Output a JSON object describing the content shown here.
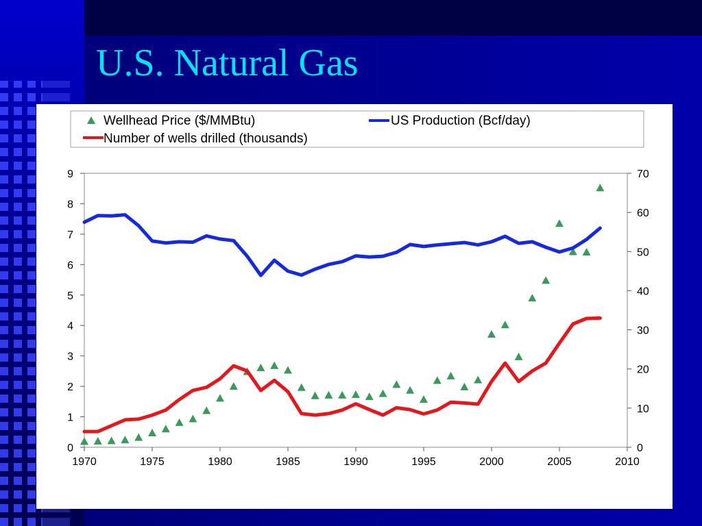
{
  "slide": {
    "title": "U.S. Natural Gas"
  },
  "colors": {
    "title": "#00e5ff",
    "price_marker": "#3a9a5b",
    "production_line": "#1428e8",
    "wells_line": "#e8161b"
  },
  "chart_data": {
    "type": "line",
    "title": "",
    "xlabel": "",
    "ylabel": "",
    "y2label": "",
    "xlim": [
      1970,
      2010
    ],
    "ylim": [
      0,
      9
    ],
    "y2lim": [
      0,
      70
    ],
    "x_ticks": [
      "1970",
      "1975",
      "1980",
      "1985",
      "1990",
      "1995",
      "2000",
      "2005",
      "2010"
    ],
    "y_ticks": [
      "0",
      "1",
      "2",
      "3",
      "4",
      "5",
      "6",
      "7",
      "8",
      "9"
    ],
    "y2_ticks": [
      "0",
      "10",
      "20",
      "30",
      "40",
      "50",
      "60",
      "70"
    ],
    "grid": false,
    "legend_position": "top",
    "series": [
      {
        "name": "Wellhead Price ($/MMBtu)",
        "type": "scatter",
        "axis": "left",
        "marker": "triangle",
        "x": [
          1970,
          1971,
          1972,
          1973,
          1974,
          1975,
          1976,
          1977,
          1978,
          1979,
          1980,
          1981,
          1982,
          1983,
          1984,
          1985,
          1986,
          1987,
          1988,
          1989,
          1990,
          1991,
          1992,
          1993,
          1994,
          1995,
          1996,
          1997,
          1998,
          1999,
          2000,
          2001,
          2002,
          2003,
          2004,
          2005,
          2006,
          2007,
          2008
        ],
        "values": [
          0.17,
          0.18,
          0.19,
          0.22,
          0.3,
          0.45,
          0.58,
          0.79,
          0.91,
          1.18,
          1.59,
          1.98,
          2.46,
          2.59,
          2.66,
          2.51,
          1.94,
          1.67,
          1.69,
          1.69,
          1.71,
          1.64,
          1.74,
          2.04,
          1.85,
          1.55,
          2.17,
          2.32,
          1.96,
          2.19,
          3.69,
          4.0,
          2.95,
          4.88,
          5.46,
          7.33,
          6.4,
          6.39,
          8.5
        ]
      },
      {
        "name": "US Production (Bcf/day)",
        "type": "line",
        "axis": "right",
        "x": [
          1970,
          1971,
          1972,
          1973,
          1974,
          1975,
          1976,
          1977,
          1978,
          1979,
          1980,
          1981,
          1982,
          1983,
          1984,
          1985,
          1986,
          1987,
          1988,
          1989,
          1990,
          1991,
          1992,
          1993,
          1994,
          1995,
          1996,
          1997,
          1998,
          1999,
          2000,
          2001,
          2002,
          2003,
          2004,
          2005,
          2006,
          2007,
          2008
        ],
        "values": [
          57.5,
          59.2,
          59.1,
          59.4,
          56.6,
          52.7,
          52.2,
          52.5,
          52.4,
          54.0,
          53.2,
          52.8,
          48.8,
          43.9,
          47.8,
          45.0,
          44.0,
          45.5,
          46.7,
          47.4,
          48.9,
          48.6,
          48.8,
          49.8,
          51.8,
          51.3,
          51.7,
          52.0,
          52.3,
          51.7,
          52.5,
          53.9,
          52.1,
          52.5,
          51.1,
          49.9,
          50.9,
          53.1,
          56.0
        ]
      },
      {
        "name": "Number of wells drilled (thousands)",
        "type": "line",
        "axis": "right",
        "x": [
          1970,
          1971,
          1972,
          1973,
          1974,
          1975,
          1976,
          1977,
          1978,
          1979,
          1980,
          1981,
          1982,
          1983,
          1984,
          1985,
          1986,
          1987,
          1988,
          1989,
          1990,
          1991,
          1992,
          1993,
          1994,
          1995,
          1996,
          1997,
          1998,
          1999,
          2000,
          2001,
          2002,
          2003,
          2004,
          2005,
          2006,
          2007,
          2008
        ],
        "values": [
          4.0,
          4.0,
          5.5,
          7.0,
          7.2,
          8.2,
          9.5,
          12.2,
          14.5,
          15.3,
          17.5,
          20.8,
          19.5,
          14.5,
          17.1,
          14.2,
          8.6,
          8.2,
          8.6,
          9.5,
          11.1,
          9.6,
          8.2,
          10.1,
          9.6,
          8.5,
          9.5,
          11.5,
          11.3,
          11.0,
          16.8,
          21.5,
          16.8,
          19.5,
          21.5,
          26.6,
          31.5,
          32.9,
          33.0
        ]
      }
    ]
  }
}
